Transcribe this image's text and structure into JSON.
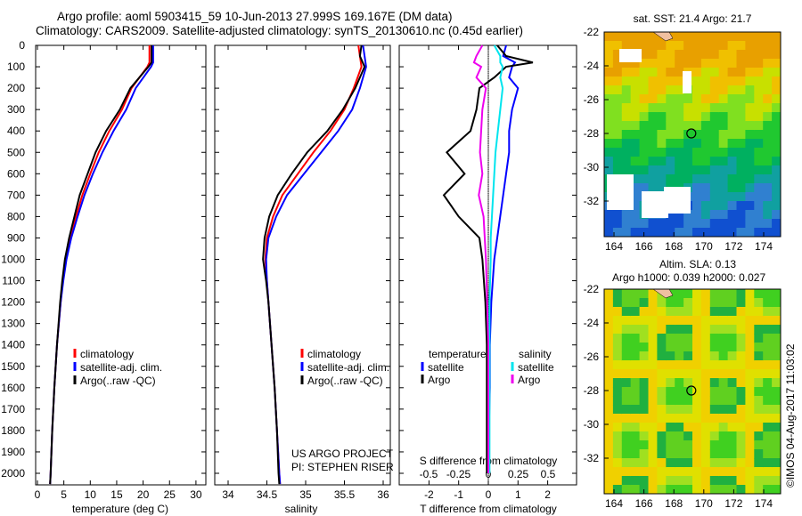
{
  "title_line1": "Argo profile: aoml 5903415_59 10-Jun-2013 27.999S 169.167E (DM data)",
  "title_line2": "Climatology: CARS2009. Satellite-adjusted climatology: synTS_20130610.nc (0.45d earlier)",
  "colors": {
    "climatology": "#ff0000",
    "satellite": "#0000ff",
    "argo": "#000000",
    "sal_satellite": "#00e5ee",
    "sal_argo": "#ee00ee"
  },
  "project_line1": "US ARGO PROJECT",
  "project_line2": "PI: STEPHEN RISER",
  "timestamp": "©IMOS 04-Aug-2017 11:03:02",
  "chart_data": [
    {
      "type": "line",
      "xlabel": "temperature (deg C)",
      "ylabel": "",
      "xlim": [
        -1,
        31
      ],
      "ylim": [
        2050,
        0
      ],
      "xticks": [
        "0",
        "5",
        "10",
        "15",
        "20",
        "25",
        "30"
      ],
      "yticks": [
        "0",
        "100",
        "200",
        "300",
        "400",
        "500",
        "600",
        "700",
        "800",
        "900",
        "1000",
        "1100",
        "1200",
        "1300",
        "1400",
        "1500",
        "1600",
        "1700",
        "1800",
        "1900",
        "2000"
      ],
      "legend": [
        "climatology",
        "satellite-adj. clim.",
        "Argo(..raw -QC)"
      ],
      "depth": [
        0,
        80,
        100,
        200,
        300,
        400,
        500,
        600,
        700,
        800,
        900,
        1000,
        1100,
        1200,
        1400,
        1600,
        1800,
        2000,
        2050
      ],
      "series": [
        {
          "name": "climatology",
          "values": [
            21.2,
            21.2,
            20.8,
            17.8,
            16,
            13.6,
            11.6,
            10,
            8.5,
            7.3,
            6.2,
            5.3,
            4.8,
            4.4,
            3.7,
            3.2,
            2.8,
            2.5,
            2.4
          ]
        },
        {
          "name": "satellite-adj. clim.",
          "values": [
            21.9,
            21.9,
            21.5,
            18.6,
            16.8,
            14.4,
            12.3,
            10.5,
            8.9,
            7.6,
            6.4,
            5.5,
            4.9,
            4.4,
            3.7,
            3.2,
            2.8,
            2.5,
            2.4
          ]
        },
        {
          "name": "Argo(..raw -QC)",
          "values": [
            21.6,
            21.6,
            21,
            17.6,
            15.6,
            13,
            11,
            9.5,
            8,
            7,
            6,
            5.2,
            4.7,
            4.3,
            3.7,
            3.2,
            2.8,
            2.5,
            2.4
          ]
        }
      ]
    },
    {
      "type": "line",
      "xlabel": "salinity",
      "xlim": [
        33.8,
        36.1
      ],
      "ylim": [
        2050,
        0
      ],
      "xticks": [
        "34",
        "34.5",
        "35",
        "35.5",
        "36"
      ],
      "legend": [
        "climatology",
        "satellite-adj. clim.",
        "Argo(..raw -QC)"
      ],
      "depth": [
        0,
        50,
        100,
        200,
        300,
        400,
        500,
        600,
        700,
        800,
        900,
        1000,
        1100,
        1200,
        1400,
        1600,
        1800,
        2000,
        2050
      ],
      "series": [
        {
          "name": "climatology",
          "values": [
            35.68,
            35.7,
            35.72,
            35.62,
            35.5,
            35.32,
            35.1,
            34.9,
            34.7,
            34.58,
            34.5,
            34.48,
            34.5,
            34.52,
            34.56,
            34.6,
            34.63,
            34.66,
            34.67
          ]
        },
        {
          "name": "satellite-adj. clim.",
          "values": [
            35.74,
            35.76,
            35.78,
            35.7,
            35.6,
            35.42,
            35.2,
            34.98,
            34.76,
            34.62,
            34.52,
            34.49,
            34.5,
            34.52,
            34.56,
            34.6,
            34.63,
            34.66,
            34.67
          ]
        },
        {
          "name": "Argo(..raw -QC)",
          "values": [
            35.72,
            35.7,
            35.76,
            35.64,
            35.48,
            35.28,
            35.02,
            34.82,
            34.64,
            34.53,
            34.47,
            34.45,
            34.49,
            34.52,
            34.56,
            34.6,
            34.63,
            34.65,
            34.66
          ]
        }
      ]
    },
    {
      "type": "line",
      "xlabel": "T difference from climatology",
      "xlabel2": "S difference from climatology",
      "xlim": [
        -3,
        3
      ],
      "ylim": [
        2050,
        0
      ],
      "xticks": [
        "-2",
        "-1",
        "0",
        "1",
        "2"
      ],
      "xticks2": [
        "-0.5",
        "-0.25",
        "0",
        "0.25",
        "0.5"
      ],
      "legend_temperature_title": "temperature",
      "legend_salinity_title": "salinity",
      "legend": [
        "satellite",
        "Argo",
        "satellite",
        "Argo"
      ],
      "depth": [
        0,
        50,
        80,
        100,
        150,
        200,
        300,
        400,
        500,
        600,
        700,
        800,
        900,
        1000,
        1200,
        1400,
        1600,
        1800,
        2000
      ],
      "series": [
        {
          "name": "T satellite",
          "values": [
            0.6,
            0.5,
            0.9,
            0.8,
            0.7,
            1,
            0.8,
            0.7,
            0.7,
            0.6,
            0.5,
            0.4,
            0.3,
            0.2,
            0.1,
            0.05,
            0.05,
            0.02,
            0.02
          ]
        },
        {
          "name": "T Argo",
          "values": [
            0.3,
            0.6,
            1.5,
            0.6,
            0.2,
            -0.3,
            -0.4,
            -0.6,
            -1.4,
            -0.8,
            -1.5,
            -1,
            -0.3,
            -0.2,
            -0.1,
            -0.05,
            -0.05,
            -0.05,
            -0.05
          ]
        },
        {
          "name": "S satellite",
          "values": [
            0.05,
            0.1,
            0.1,
            0.12,
            0.1,
            0.12,
            0.1,
            0.08,
            0.06,
            0.05,
            0.04,
            0.03,
            0.02,
            0.02,
            0.01,
            0.01,
            0.01,
            0.01,
            0.01
          ]
        },
        {
          "name": "S Argo",
          "values": [
            -0.05,
            -0.1,
            -0.12,
            -0.06,
            -0.1,
            -0.02,
            -0.05,
            -0.06,
            -0.07,
            -0.05,
            -0.08,
            -0.04,
            -0.03,
            -0.02,
            -0.01,
            0,
            0,
            0,
            0
          ]
        }
      ]
    },
    {
      "type": "heatmap",
      "title": "sat. SST: 21.4 Argo: 21.7",
      "xticks": [
        "164",
        "166",
        "168",
        "170",
        "172",
        "174"
      ],
      "yticks": [
        "-22",
        "-24",
        "-26",
        "-28",
        "-30",
        "-32"
      ],
      "marker": [
        169.167,
        -27.999
      ]
    },
    {
      "type": "heatmap",
      "title": "Altim. SLA: 0.13",
      "subtitle": "Argo h1000: 0.039 h2000: 0.027",
      "xticks": [
        "164",
        "166",
        "168",
        "170",
        "172",
        "174"
      ],
      "yticks": [
        "-22",
        "-24",
        "-26",
        "-28",
        "-30",
        "-32"
      ],
      "marker": [
        169.167,
        -27.999
      ]
    }
  ]
}
